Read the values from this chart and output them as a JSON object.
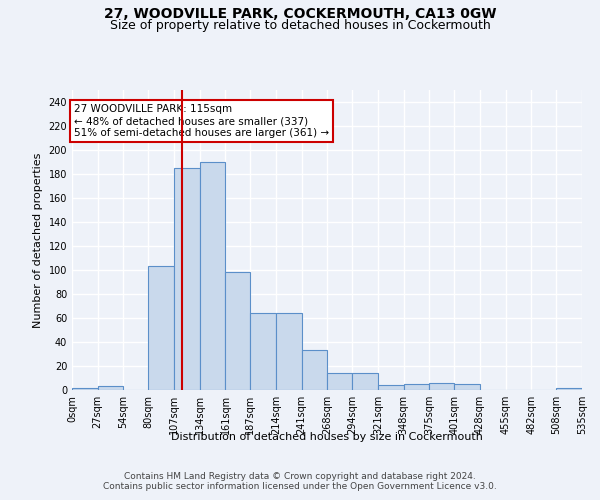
{
  "title": "27, WOODVILLE PARK, COCKERMOUTH, CA13 0GW",
  "subtitle": "Size of property relative to detached houses in Cockermouth",
  "xlabel": "Distribution of detached houses by size in Cockermouth",
  "ylabel": "Number of detached properties",
  "bin_edges": [
    0,
    27,
    54,
    80,
    107,
    134,
    161,
    187,
    214,
    241,
    268,
    294,
    321,
    348,
    375,
    401,
    428,
    455,
    482,
    508,
    535
  ],
  "bin_labels": [
    "0sqm",
    "27sqm",
    "54sqm",
    "80sqm",
    "107sqm",
    "134sqm",
    "161sqm",
    "187sqm",
    "214sqm",
    "241sqm",
    "268sqm",
    "294sqm",
    "321sqm",
    "348sqm",
    "375sqm",
    "401sqm",
    "428sqm",
    "455sqm",
    "482sqm",
    "508sqm",
    "535sqm"
  ],
  "counts": [
    2,
    3,
    0,
    103,
    185,
    190,
    98,
    64,
    64,
    33,
    14,
    14,
    4,
    5,
    6,
    5,
    0,
    0,
    0,
    2
  ],
  "bar_color": "#c9d9ec",
  "bar_edge_color": "#5b8fc9",
  "vline_x": 115,
  "vline_color": "#cc0000",
  "annotation_line1": "27 WOODVILLE PARK: 115sqm",
  "annotation_line2": "← 48% of detached houses are smaller (337)",
  "annotation_line3": "51% of semi-detached houses are larger (361) →",
  "annotation_box_color": "#ffffff",
  "annotation_box_edge_color": "#cc0000",
  "ylim": [
    0,
    250
  ],
  "yticks": [
    0,
    20,
    40,
    60,
    80,
    100,
    120,
    140,
    160,
    180,
    200,
    220,
    240
  ],
  "footer1": "Contains HM Land Registry data © Crown copyright and database right 2024.",
  "footer2": "Contains public sector information licensed under the Open Government Licence v3.0.",
  "bg_color": "#eef2f9",
  "plot_bg_color": "#eef2f9",
  "grid_color": "#ffffff",
  "title_fontsize": 10,
  "subtitle_fontsize": 9,
  "axis_label_fontsize": 8,
  "tick_fontsize": 7,
  "footer_fontsize": 6.5,
  "annotation_fontsize": 7.5
}
